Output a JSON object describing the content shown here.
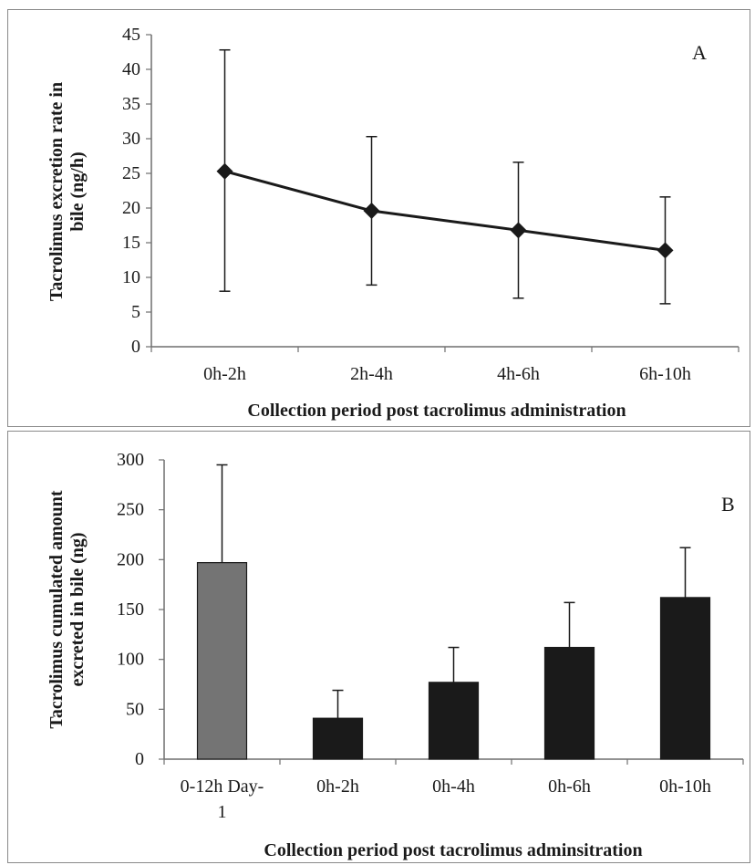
{
  "chart_data": [
    {
      "type": "line",
      "panel_label": "A",
      "categories": [
        "0h-2h",
        "2h-4h",
        "4h-6h",
        "6h-10h"
      ],
      "series": [
        {
          "values": [
            25.3,
            19.6,
            16.8,
            13.9
          ],
          "error_low": [
            8.0,
            8.9,
            7.0,
            6.2
          ],
          "error_high": [
            42.8,
            30.3,
            26.6,
            21.6
          ]
        }
      ],
      "ylabel_lines": [
        "Tacrolimus excretion rate in",
        "bile (ng/h)"
      ],
      "xlabel": "Collection period post tacrolimus administration",
      "ylim": [
        0,
        45
      ],
      "yticks": [
        0,
        5,
        10,
        15,
        20,
        25,
        30,
        35,
        40,
        45
      ],
      "marker": "diamond",
      "color": "#1a1a1a",
      "grid": false
    },
    {
      "type": "bar",
      "panel_label": "B",
      "categories": [
        "0-12h Day-1",
        "0h-2h",
        "0h-4h",
        "0h-6h",
        "0h-10h"
      ],
      "category_lines": [
        [
          "0-12h Day-",
          "1"
        ],
        [
          "0h-2h"
        ],
        [
          "0h-4h"
        ],
        [
          "0h-6h"
        ],
        [
          "0h-10h"
        ]
      ],
      "values": [
        197,
        41,
        77,
        112,
        162
      ],
      "error_high": [
        295,
        69,
        112,
        157,
        212
      ],
      "bar_colors": [
        "#747474",
        "#1a1a1a",
        "#1a1a1a",
        "#1a1a1a",
        "#1a1a1a"
      ],
      "ylabel_lines": [
        "Tacrolimus cumulated amount",
        "excreted in bile (ng)"
      ],
      "xlabel": "Collection period post tacrolimus adminsitration",
      "ylim": [
        0,
        300
      ],
      "yticks": [
        0,
        50,
        100,
        150,
        200,
        250,
        300
      ],
      "grid": false
    }
  ]
}
